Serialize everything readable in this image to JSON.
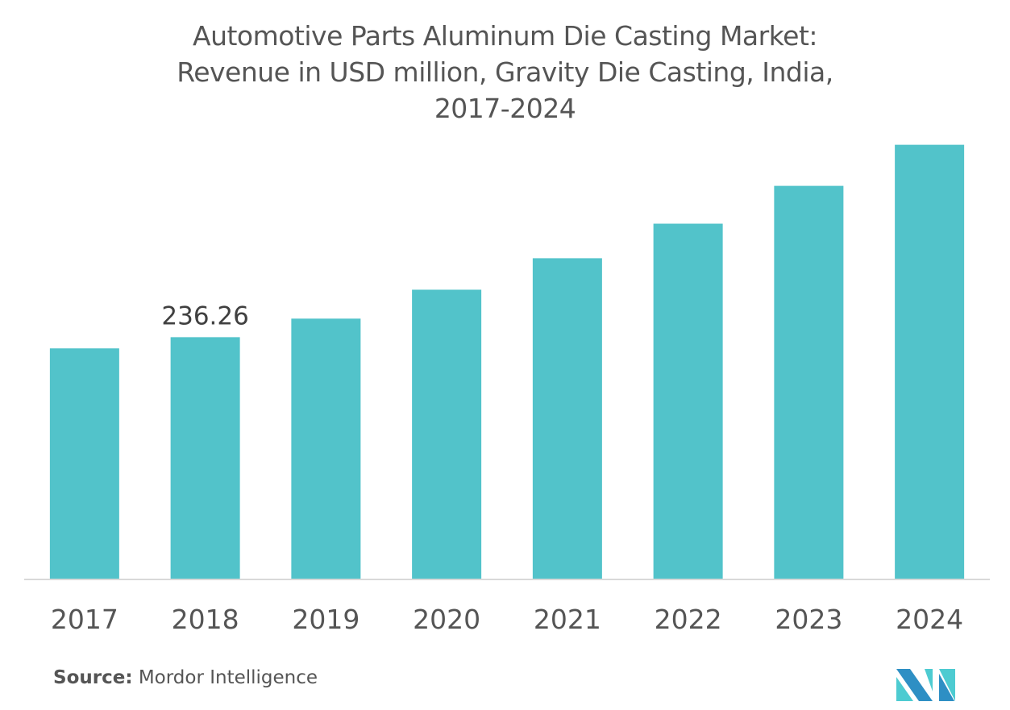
{
  "chart_data": {
    "type": "bar",
    "title_lines": [
      "Automotive Parts Aluminum Die Casting Market:",
      "Revenue in USD million, Gravity Die Casting, India,",
      "2017-2024"
    ],
    "xlabel": "",
    "ylabel": "",
    "categories": [
      "2017",
      "2018",
      "2019",
      "2020",
      "2021",
      "2022",
      "2023",
      "2024"
    ],
    "values": [
      225.3,
      236.26,
      254.4,
      282.7,
      313.5,
      347.3,
      384.3,
      424.5
    ],
    "data_labels": [
      {
        "category": "2018",
        "text": "236.26"
      }
    ],
    "ylim": [
      0,
      425
    ],
    "grid": false,
    "legend": "none",
    "bar_color": "#52C3CA",
    "axis_color": "#D9D9D9",
    "text_color": "#555555"
  },
  "footer": {
    "source_label": "Source:",
    "source_value": "Mordor Intelligence"
  },
  "logo": {
    "icon": "mordor-intelligence-logo-icon",
    "colors": [
      "#2E8FC4",
      "#4DCBD1"
    ]
  }
}
